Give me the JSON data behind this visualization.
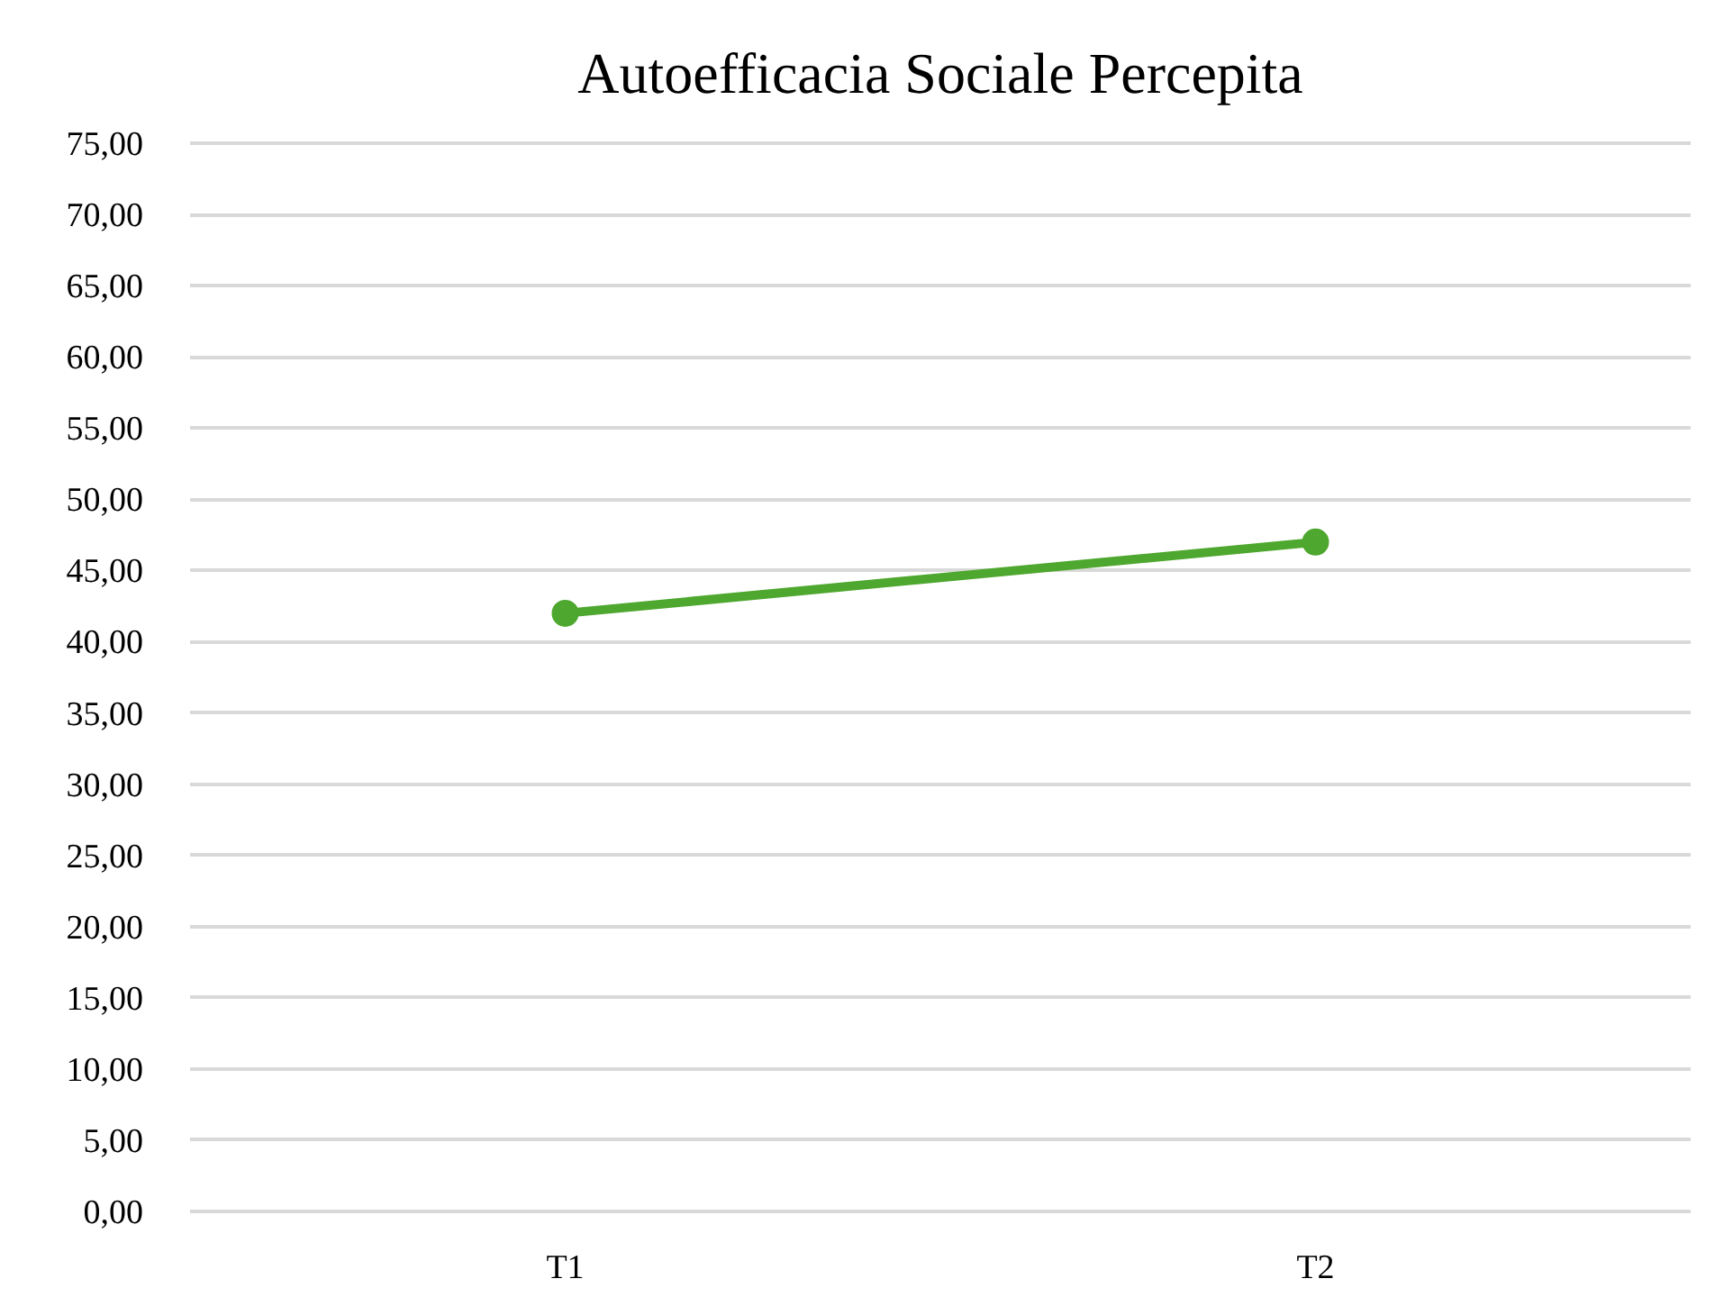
{
  "chart_data": {
    "type": "line",
    "title": "Autoefficacia Sociale Percepita",
    "categories": [
      "T1",
      "T2"
    ],
    "series": [
      {
        "color": "#4ea72e",
        "values": [
          42.0,
          47.0
        ]
      }
    ],
    "ylim": [
      0,
      75
    ],
    "yticks": [
      {
        "value": 0,
        "label": "0,00"
      },
      {
        "value": 5,
        "label": "5,00"
      },
      {
        "value": 10,
        "label": "10,00"
      },
      {
        "value": 15,
        "label": "15,00"
      },
      {
        "value": 20,
        "label": "20,00"
      },
      {
        "value": 25,
        "label": "25,00"
      },
      {
        "value": 30,
        "label": "30,00"
      },
      {
        "value": 35,
        "label": "35,00"
      },
      {
        "value": 40,
        "label": "40,00"
      },
      {
        "value": 45,
        "label": "45,00"
      },
      {
        "value": 50,
        "label": "50,00"
      },
      {
        "value": 55,
        "label": "55,00"
      },
      {
        "value": 60,
        "label": "60,00"
      },
      {
        "value": 65,
        "label": "65,00"
      },
      {
        "value": 70,
        "label": "70,00"
      },
      {
        "value": 75,
        "label": "75,00"
      }
    ],
    "grid": "y",
    "marker": "circle",
    "line_style": "solid"
  }
}
